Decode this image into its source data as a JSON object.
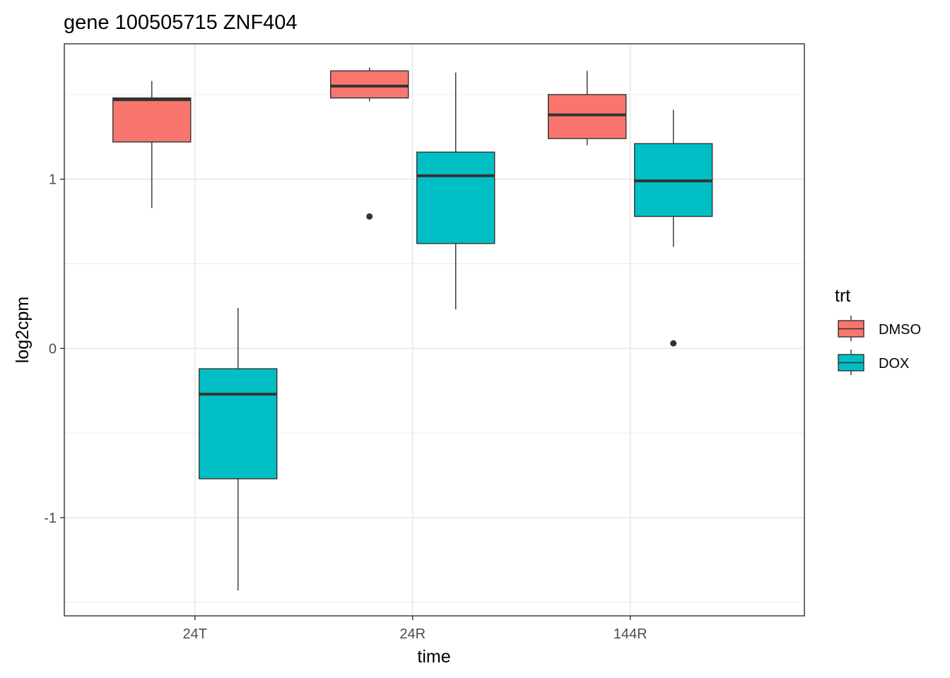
{
  "chart_data": {
    "type": "boxplot",
    "title": "gene 100505715 ZNF404",
    "xlabel": "time",
    "ylabel": "log2cpm",
    "categories": [
      "24T",
      "24R",
      "144R"
    ],
    "yticks": [
      -1,
      0,
      1
    ],
    "ytick_labels": [
      "-1",
      "0",
      "1"
    ],
    "ylim": [
      -1.58,
      1.8
    ],
    "grid": true,
    "legend": {
      "title": "trt",
      "position": "right",
      "entries": [
        {
          "label": "DMSO",
          "color": "#F8766D"
        },
        {
          "label": "DOX",
          "color": "#00BFC4"
        }
      ]
    },
    "series": [
      {
        "name": "DMSO",
        "color": "#F8766D",
        "boxes": [
          {
            "category": "24T",
            "whisker_low": 0.83,
            "q1": 1.22,
            "median": 1.47,
            "q3": 1.48,
            "whisker_high": 1.58,
            "outliers": []
          },
          {
            "category": "24R",
            "whisker_low": 1.46,
            "q1": 1.48,
            "median": 1.55,
            "q3": 1.64,
            "whisker_high": 1.66,
            "outliers": [
              0.78
            ]
          },
          {
            "category": "144R",
            "whisker_low": 1.2,
            "q1": 1.24,
            "median": 1.38,
            "q3": 1.5,
            "whisker_high": 1.64,
            "outliers": []
          }
        ]
      },
      {
        "name": "DOX",
        "color": "#00BFC4",
        "boxes": [
          {
            "category": "24T",
            "whisker_low": -1.43,
            "q1": -0.77,
            "median": -0.27,
            "q3": -0.12,
            "whisker_high": 0.24,
            "outliers": []
          },
          {
            "category": "24R",
            "whisker_low": 0.23,
            "q1": 0.62,
            "median": 1.02,
            "q3": 1.16,
            "whisker_high": 1.63,
            "outliers": []
          },
          {
            "category": "144R",
            "whisker_low": 0.6,
            "q1": 0.78,
            "median": 0.99,
            "q3": 1.21,
            "whisker_high": 1.41,
            "outliers": [
              0.03
            ]
          }
        ]
      }
    ]
  }
}
